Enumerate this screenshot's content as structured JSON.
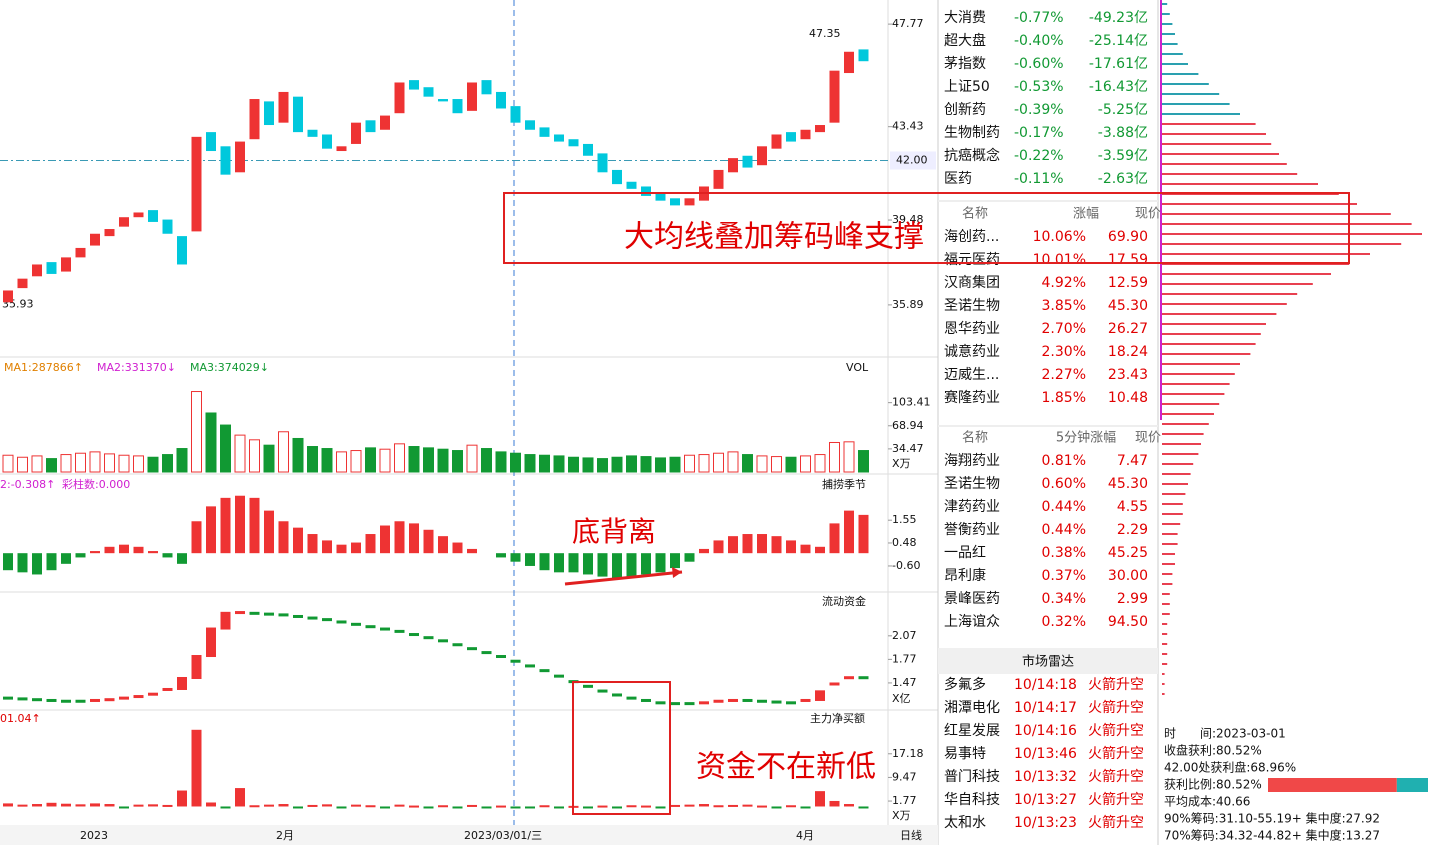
{
  "chart": {
    "price_ticks": [
      47.77,
      43.43,
      39.48,
      35.89
    ],
    "price_lim": [
      33.77,
      48.79
    ],
    "current": {
      "value": 42,
      "label": "42.00"
    },
    "high_label": "47.35",
    "low_label": "35.93",
    "open": [
      36.0,
      36.6,
      37.1,
      37.7,
      37.3,
      37.9,
      38.4,
      38.8,
      39.2,
      39.6,
      39.9,
      39.5,
      38.8,
      39.0,
      43.2,
      42.6,
      41.5,
      42.9,
      44.5,
      43.6,
      44.7,
      43.3,
      43.1,
      42.4,
      42.7,
      43.7,
      43.3,
      44.0,
      45.4,
      45.1,
      44.6,
      44.6,
      44.1,
      45.4,
      44.9,
      44.3,
      43.7,
      43.4,
      43.1,
      42.9,
      42.7,
      42.3,
      41.6,
      41.1,
      40.9,
      40.6,
      40.4,
      40.1,
      40.3,
      40.8,
      41.5,
      42.2,
      41.8,
      42.5,
      43.2,
      42.9,
      43.2,
      43.6,
      45.7,
      46.7
    ],
    "close": [
      36.5,
      37.0,
      37.6,
      37.2,
      37.9,
      38.3,
      38.9,
      39.1,
      39.6,
      39.8,
      39.4,
      38.9,
      37.6,
      43.0,
      42.4,
      41.4,
      42.8,
      44.6,
      43.5,
      44.9,
      43.2,
      43.0,
      42.5,
      42.6,
      43.6,
      43.2,
      43.9,
      45.3,
      45.0,
      44.7,
      44.5,
      44.0,
      45.3,
      44.8,
      44.2,
      43.6,
      43.3,
      43.0,
      42.8,
      42.6,
      42.2,
      41.5,
      41.0,
      40.8,
      40.5,
      40.3,
      40.1,
      40.4,
      40.9,
      41.6,
      42.1,
      41.7,
      42.6,
      43.1,
      42.8,
      43.3,
      43.5,
      45.8,
      46.6,
      46.2
    ]
  },
  "volume": {
    "legend": [
      "MA1:287866↑",
      "MA2:331370↓",
      "MA3:374029↓"
    ],
    "title": "VOL",
    "unit": "X万",
    "ticks": [
      103.41,
      68.94,
      34.47
    ],
    "lim": [
      0,
      170
    ],
    "values": [
      25,
      22,
      24,
      20,
      26,
      28,
      30,
      27,
      25,
      24,
      22,
      26,
      35,
      120,
      88,
      70,
      55,
      48,
      40,
      60,
      50,
      38,
      35,
      30,
      32,
      36,
      34,
      42,
      38,
      36,
      34,
      32,
      40,
      35,
      30,
      28,
      26,
      25,
      24,
      22,
      21,
      20,
      22,
      24,
      23,
      21,
      22,
      25,
      26,
      28,
      30,
      26,
      24,
      23,
      22,
      24,
      26,
      44,
      45,
      32
    ]
  },
  "macd": {
    "legend": [
      "2:-0.308↑",
      "彩柱数:0.000"
    ],
    "title": "捕捞季节",
    "ticks": [
      1.55,
      0.48,
      {
        "value": -0.6,
        "label": "-0.60"
      }
    ],
    "lim": [
      -1.73,
      3.58
    ],
    "values": [
      -0.8,
      -0.9,
      -1.0,
      -0.8,
      -0.5,
      -0.2,
      0.1,
      0.3,
      0.4,
      0.3,
      0.1,
      -0.2,
      -0.5,
      1.5,
      2.2,
      2.6,
      2.7,
      2.6,
      2.0,
      1.5,
      1.2,
      0.9,
      0.6,
      0.4,
      0.5,
      0.9,
      1.3,
      1.5,
      1.4,
      1.1,
      0.8,
      0.5,
      0.2,
      0.0,
      -0.2,
      -0.4,
      -0.6,
      -0.8,
      -0.9,
      -0.9,
      -1.0,
      -1.1,
      -1.2,
      -1.1,
      -1.0,
      -0.9,
      -0.7,
      -0.4,
      0.2,
      0.6,
      0.8,
      0.9,
      0.9,
      0.8,
      0.6,
      0.4,
      0.3,
      1.4,
      2.0,
      1.8
    ]
  },
  "flow": {
    "title": "流动资金",
    "unit": "X亿",
    "ticks": [
      2.07,
      1.77,
      1.47
    ],
    "lim": [
      1.125,
      2.59
    ],
    "values": [
      1.27,
      1.26,
      1.25,
      1.24,
      1.23,
      1.23,
      1.24,
      1.25,
      1.27,
      1.29,
      1.32,
      1.38,
      1.52,
      1.8,
      2.15,
      2.35,
      2.36,
      2.35,
      2.34,
      2.33,
      2.31,
      2.29,
      2.27,
      2.24,
      2.21,
      2.18,
      2.15,
      2.12,
      2.08,
      2.04,
      2.0,
      1.95,
      1.9,
      1.85,
      1.8,
      1.74,
      1.68,
      1.62,
      1.55,
      1.48,
      1.42,
      1.36,
      1.31,
      1.27,
      1.24,
      1.21,
      1.2,
      1.2,
      1.21,
      1.23,
      1.24,
      1.24,
      1.23,
      1.22,
      1.21,
      1.24,
      1.35,
      1.45,
      1.53,
      1.53
    ]
  },
  "netbuy": {
    "legend": "01.04↑",
    "title": "主力净买额",
    "unit": "X万",
    "ticks": [
      17.18,
      9.47,
      1.77
    ],
    "lim": [
      -1.8,
      30.8
    ],
    "values": [
      1.0,
      0.6,
      0.8,
      1.2,
      0.9,
      0.7,
      1.0,
      0.8,
      -0.4,
      0.6,
      0.7,
      0.5,
      5.2,
      25.0,
      1.3,
      -0.5,
      6.0,
      0.4,
      0.6,
      0.8,
      -0.3,
      0.5,
      0.7,
      -0.2,
      0.6,
      0.4,
      -0.5,
      0.6,
      0.3,
      -0.3,
      0.4,
      -0.2,
      0.5,
      -0.4,
      0.3,
      -0.3,
      -0.2,
      0.4,
      -0.3,
      0.2,
      -0.2,
      0.3,
      -0.2,
      0.4,
      0.3,
      -0.2,
      0.5,
      0.6,
      0.8,
      0.4,
      0.5,
      0.6,
      0.3,
      -0.2,
      0.4,
      -0.5,
      5.0,
      1.8,
      0.8,
      -0.3
    ]
  },
  "x_axis": {
    "labels": [
      "2023",
      "2月",
      "2023/03/01/三",
      "4月"
    ],
    "period": "日线"
  },
  "annotations": [
    "大均线叠加筹码峰支撑",
    "底背离",
    "资金不在新低"
  ],
  "indices": [
    [
      "大消费",
      "-0.77%",
      "-49.23亿"
    ],
    [
      "超大盘",
      "-0.40%",
      "-25.14亿"
    ],
    [
      "茅指数",
      "-0.60%",
      "-17.61亿"
    ],
    [
      "上证50",
      "-0.53%",
      "-16.43亿"
    ],
    [
      "创新药",
      "-0.39%",
      "-5.25亿"
    ],
    [
      "生物制药",
      "-0.17%",
      "-3.88亿"
    ],
    [
      "抗癌概念",
      "-0.22%",
      "-3.59亿"
    ],
    [
      "医药",
      "-0.11%",
      "-2.63亿"
    ]
  ],
  "gainers": {
    "header": [
      "名称",
      "涨幅",
      "现价"
    ],
    "rows": [
      [
        "海创药...",
        "10.06%",
        "69.90"
      ],
      [
        "福元医药",
        "10.01%",
        "17.59"
      ],
      [
        "汉商集团",
        "4.92%",
        "12.59"
      ],
      [
        "圣诺生物",
        "3.85%",
        "45.30"
      ],
      [
        "恩华药业",
        "2.70%",
        "26.27"
      ],
      [
        "诚意药业",
        "2.30%",
        "18.24"
      ],
      [
        "迈威生...",
        "2.27%",
        "23.43"
      ],
      [
        "赛隆药业",
        "1.85%",
        "10.48"
      ]
    ]
  },
  "movers": {
    "header": [
      "名称",
      "5分钟涨幅",
      "现价"
    ],
    "rows": [
      [
        "海翔药业",
        "0.81%",
        "7.47"
      ],
      [
        "圣诺生物",
        "0.60%",
        "45.30"
      ],
      [
        "津药药业",
        "0.44%",
        "4.55"
      ],
      [
        "誉衡药业",
        "0.44%",
        "2.29"
      ],
      [
        "一品红",
        "0.38%",
        "45.25"
      ],
      [
        "昂利康",
        "0.37%",
        "30.00"
      ],
      [
        "景峰医药",
        "0.34%",
        "2.99"
      ],
      [
        "上海谊众",
        "0.32%",
        "94.50"
      ]
    ]
  },
  "radar": {
    "title": "市场雷达",
    "rows": [
      [
        "多氟多",
        "10/14:18",
        "火箭升空"
      ],
      [
        "湘潭电化",
        "10/14:17",
        "火箭升空"
      ],
      [
        "红星发展",
        "10/14:16",
        "火箭升空"
      ],
      [
        "易事特",
        "10/13:46",
        "火箭升空"
      ],
      [
        "普门科技",
        "10/13:32",
        "火箭升空"
      ],
      [
        "华自科技",
        "10/13:27",
        "火箭升空"
      ],
      [
        "太和水",
        "10/13:23",
        "火箭升空"
      ]
    ]
  },
  "chips": {
    "values": [
      2,
      3,
      4,
      5,
      6,
      8,
      10,
      14,
      18,
      22,
      26,
      30,
      36,
      40,
      42,
      45,
      48,
      52,
      60,
      68,
      75,
      88,
      96,
      100,
      92,
      80,
      72,
      65,
      58,
      52,
      48,
      44,
      40,
      38,
      36,
      34,
      30,
      28,
      26,
      24,
      22,
      20,
      18,
      16,
      15,
      14,
      12,
      11,
      10,
      9,
      8,
      8,
      7,
      6,
      6,
      5,
      5,
      4,
      4,
      3,
      3,
      3,
      2,
      2,
      2,
      2,
      2,
      1,
      1,
      1
    ],
    "lines": [
      "时　　间:2023-03-01",
      "收盘获利:80.52%",
      "42.00处获利盘:68.96%",
      "获利比例:80.52%",
      "平均成本:40.66",
      "90%筹码:31.10-55.19+ 集中度:27.92",
      "70%筹码:34.32-44.82+ 集中度:13.27"
    ],
    "profit_ratio": 80.52
  }
}
